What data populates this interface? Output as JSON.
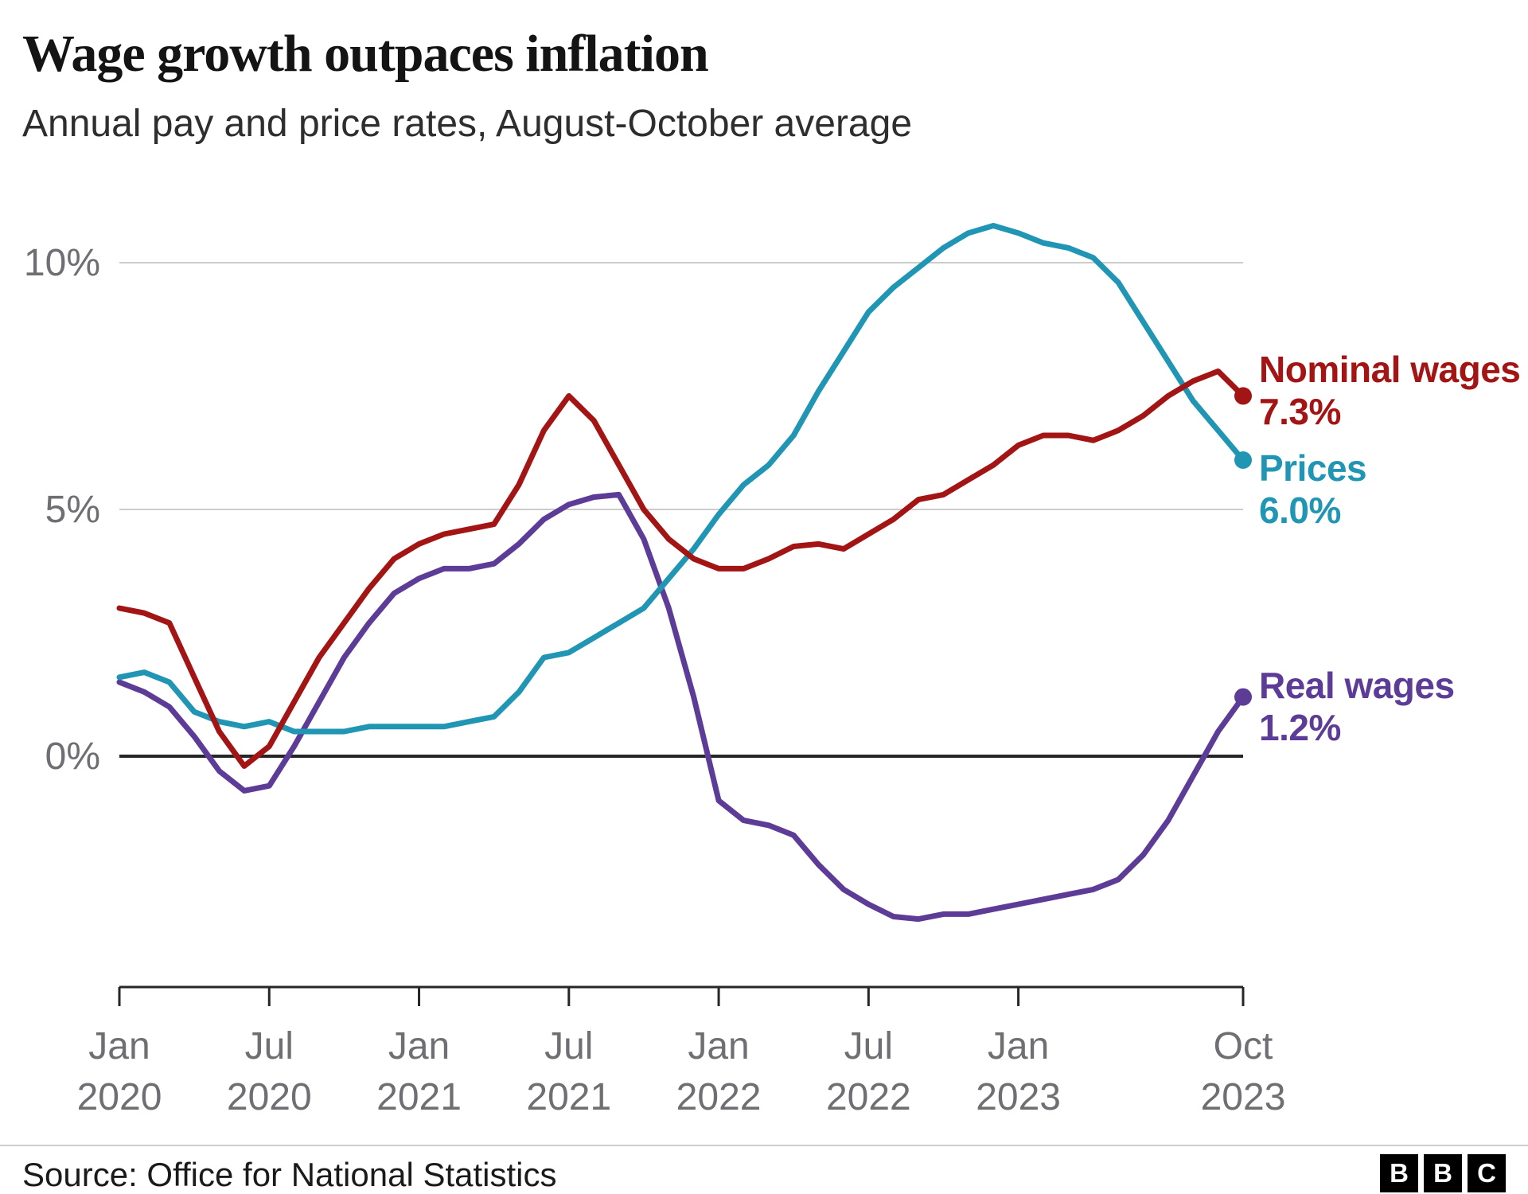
{
  "chart_data": {
    "type": "line",
    "title": "Wage growth outpaces inflation",
    "subtitle": "Annual pay and price rates, August-October average",
    "x_frequency": "monthly",
    "x_range": [
      "Jan 2020",
      "Oct 2023"
    ],
    "x_ticks": [
      {
        "index": 0,
        "line1": "Jan",
        "line2": "2020"
      },
      {
        "index": 6,
        "line1": "Jul",
        "line2": "2020"
      },
      {
        "index": 12,
        "line1": "Jan",
        "line2": "2021"
      },
      {
        "index": 18,
        "line1": "Jul",
        "line2": "2021"
      },
      {
        "index": 24,
        "line1": "Jan",
        "line2": "2022"
      },
      {
        "index": 30,
        "line1": "Jul",
        "line2": "2022"
      },
      {
        "index": 36,
        "line1": "Jan",
        "line2": "2023"
      },
      {
        "index": 45,
        "line1": "Oct",
        "line2": "2023"
      }
    ],
    "y_ticks": [
      {
        "value": 10,
        "label": "10%"
      },
      {
        "value": 5,
        "label": "5%"
      },
      {
        "value": 0,
        "label": "0%"
      }
    ],
    "ylim": [
      -4.7,
      11
    ],
    "grid": "horizontal",
    "legend_position": "right-end-labels",
    "colors": {
      "gridline": "#cccccc",
      "zero_line": "#262626",
      "axis_line": "#262626",
      "axis_text": "#6e6e73"
    },
    "series": [
      {
        "id": "nominal-wages",
        "name": "Nominal wages",
        "end_label": "7.3%",
        "end_value": 7.3,
        "color": "#a31414",
        "values": [
          3.0,
          2.9,
          2.7,
          1.6,
          0.5,
          -0.2,
          0.2,
          1.1,
          2.0,
          2.7,
          3.4,
          4.0,
          4.3,
          4.5,
          4.6,
          4.7,
          5.5,
          6.6,
          7.3,
          6.8,
          5.9,
          5.0,
          4.4,
          4.0,
          3.8,
          3.8,
          4.0,
          4.25,
          4.3,
          4.2,
          4.5,
          4.8,
          5.2,
          5.3,
          5.6,
          5.9,
          6.3,
          6.5,
          6.5,
          6.4,
          6.6,
          6.9,
          7.3,
          7.6,
          7.8,
          7.3
        ]
      },
      {
        "id": "prices",
        "name": "Prices",
        "end_label": "6.0%",
        "end_value": 6.0,
        "color": "#2096b4",
        "values": [
          1.6,
          1.7,
          1.5,
          0.9,
          0.7,
          0.6,
          0.7,
          0.5,
          0.5,
          0.5,
          0.6,
          0.6,
          0.6,
          0.6,
          0.7,
          0.8,
          1.3,
          2.0,
          2.1,
          2.4,
          2.7,
          3.0,
          3.6,
          4.2,
          4.9,
          5.5,
          5.9,
          6.5,
          7.4,
          8.2,
          9.0,
          9.5,
          9.9,
          10.3,
          10.6,
          10.75,
          10.6,
          10.4,
          10.3,
          10.1,
          9.6,
          8.8,
          8.0,
          7.2,
          6.6,
          6.0
        ]
      },
      {
        "id": "real-wages",
        "name": "Real wages",
        "end_label": "1.2%",
        "end_value": 1.2,
        "color": "#5d3c97",
        "values": [
          1.5,
          1.3,
          1.0,
          0.4,
          -0.3,
          -0.7,
          -0.6,
          0.2,
          1.1,
          2.0,
          2.7,
          3.3,
          3.6,
          3.8,
          3.8,
          3.9,
          4.3,
          4.8,
          5.1,
          5.25,
          5.3,
          4.4,
          3.0,
          1.2,
          -0.9,
          -1.3,
          -1.4,
          -1.6,
          -2.2,
          -2.7,
          -3.0,
          -3.25,
          -3.3,
          -3.2,
          -3.2,
          -3.1,
          -3.0,
          -2.9,
          -2.8,
          -2.7,
          -2.5,
          -2.0,
          -1.3,
          -0.4,
          0.5,
          1.2
        ]
      }
    ]
  },
  "footer": {
    "source": "Source: Office for National Statistics",
    "logo_letters": [
      "B",
      "B",
      "C"
    ]
  }
}
